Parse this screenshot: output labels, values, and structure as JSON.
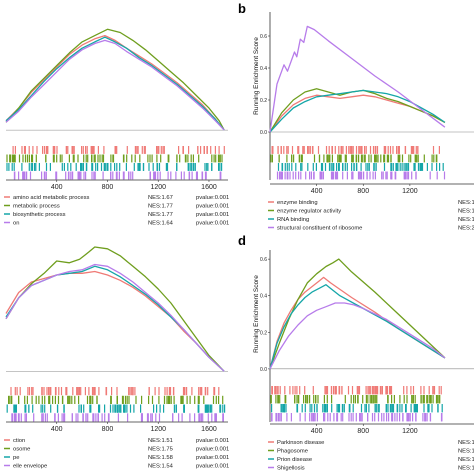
{
  "colors": {
    "red": "#ef7a76",
    "green": "#6f9e1e",
    "teal": "#15a6a8",
    "purple": "#b77cea"
  },
  "chart_data": [
    {
      "panel": "",
      "type": "line",
      "ylabel": "",
      "xlim": [
        0,
        1750
      ],
      "ylim": [
        -0.05,
        0.75
      ],
      "xticks": [
        "400",
        "800",
        "1200",
        "1600"
      ],
      "xtick_values": [
        400,
        800,
        1200,
        1600
      ],
      "yticks": [],
      "series": [
        {
          "name": "amino acid metabolic process",
          "color": "red",
          "x": [
            0,
            100,
            200,
            300,
            400,
            500,
            600,
            700,
            780,
            860,
            950,
            1050,
            1150,
            1250,
            1350,
            1450,
            1550,
            1650,
            1720
          ],
          "y": [
            0.06,
            0.14,
            0.24,
            0.32,
            0.4,
            0.48,
            0.54,
            0.58,
            0.6,
            0.57,
            0.52,
            0.47,
            0.42,
            0.36,
            0.3,
            0.23,
            0.16,
            0.07,
            0.0
          ]
        },
        {
          "name": "metabolic process",
          "color": "green",
          "x": [
            0,
            100,
            200,
            300,
            400,
            500,
            600,
            700,
            800,
            900,
            1000,
            1100,
            1200,
            1300,
            1400,
            1500,
            1600,
            1680,
            1720
          ],
          "y": [
            0.05,
            0.14,
            0.25,
            0.33,
            0.41,
            0.49,
            0.56,
            0.6,
            0.64,
            0.62,
            0.57,
            0.51,
            0.44,
            0.37,
            0.3,
            0.22,
            0.14,
            0.06,
            0.0
          ]
        },
        {
          "name": "biosynthetic process",
          "color": "teal",
          "x": [
            0,
            100,
            200,
            300,
            400,
            500,
            600,
            700,
            780,
            860,
            950,
            1050,
            1150,
            1250,
            1350,
            1450,
            1550,
            1650,
            1720
          ],
          "y": [
            0.06,
            0.13,
            0.22,
            0.31,
            0.39,
            0.46,
            0.52,
            0.56,
            0.59,
            0.56,
            0.52,
            0.46,
            0.41,
            0.35,
            0.29,
            0.22,
            0.15,
            0.07,
            0.0
          ]
        },
        {
          "name": "on",
          "color": "purple",
          "x": [
            0,
            100,
            200,
            300,
            400,
            500,
            600,
            700,
            780,
            860,
            950,
            1050,
            1150,
            1250,
            1350,
            1450,
            1550,
            1650,
            1720
          ],
          "y": [
            0.05,
            0.12,
            0.21,
            0.29,
            0.37,
            0.45,
            0.51,
            0.55,
            0.57,
            0.55,
            0.5,
            0.45,
            0.4,
            0.34,
            0.28,
            0.21,
            0.14,
            0.06,
            0.0
          ]
        }
      ],
      "legend_entries": [
        {
          "label": "amino acid metabolic process",
          "nes": "NES:1.67",
          "pvalue": "pvalue:0.001"
        },
        {
          "label": "metabolic process",
          "nes": "NES:1.77",
          "pvalue": "pvalue:0.001"
        },
        {
          "label": "biosynthetic process",
          "nes": "NES:1.77",
          "pvalue": "pvalue:0.001"
        },
        {
          "label": "on",
          "nes": "NES:1.64",
          "pvalue": "pvalue:0.001"
        }
      ]
    },
    {
      "panel": "b",
      "type": "line",
      "ylabel": "Running Enrichment Score",
      "xlim": [
        0,
        1750
      ],
      "ylim": [
        -0.05,
        0.75
      ],
      "xticks": [
        "400",
        "800",
        "1200"
      ],
      "xtick_values": [
        400,
        800,
        1200
      ],
      "yticks": [
        "0.0",
        "0.2",
        "0.4",
        "0.6"
      ],
      "ytick_values": [
        0.0,
        0.2,
        0.4,
        0.6
      ],
      "series": [
        {
          "name": "enzyme binding",
          "color": "red",
          "x": [
            0,
            100,
            200,
            300,
            400,
            500,
            600,
            700,
            800,
            900,
            1000,
            1100,
            1200,
            1300,
            1400,
            1500
          ],
          "y": [
            0.0,
            0.1,
            0.17,
            0.21,
            0.23,
            0.22,
            0.21,
            0.22,
            0.23,
            0.22,
            0.2,
            0.18,
            0.16,
            0.13,
            0.1,
            0.06
          ]
        },
        {
          "name": "enzyme regulator activity",
          "color": "green",
          "x": [
            0,
            100,
            200,
            300,
            400,
            500,
            600,
            700,
            800,
            900,
            1000,
            1100,
            1200,
            1300,
            1400,
            1500
          ],
          "y": [
            0.0,
            0.12,
            0.2,
            0.25,
            0.27,
            0.25,
            0.23,
            0.25,
            0.26,
            0.24,
            0.21,
            0.19,
            0.16,
            0.13,
            0.1,
            0.06
          ]
        },
        {
          "name": "RNA binding",
          "color": "teal",
          "x": [
            0,
            100,
            200,
            300,
            400,
            500,
            600,
            700,
            800,
            900,
            1000,
            1100,
            1200,
            1300,
            1400,
            1500
          ],
          "y": [
            0.0,
            0.08,
            0.15,
            0.19,
            0.22,
            0.23,
            0.24,
            0.25,
            0.26,
            0.25,
            0.24,
            0.22,
            0.19,
            0.15,
            0.11,
            0.06
          ]
        },
        {
          "name": "structural constituent of ribosome",
          "color": "purple",
          "x": [
            0,
            60,
            120,
            150,
            210,
            230,
            260,
            290,
            320,
            380,
            500,
            700,
            900,
            1100,
            1300,
            1500
          ],
          "y": [
            0.0,
            0.3,
            0.42,
            0.38,
            0.5,
            0.47,
            0.58,
            0.56,
            0.66,
            0.64,
            0.57,
            0.46,
            0.35,
            0.25,
            0.14,
            0.03
          ]
        }
      ],
      "legend_entries": [
        {
          "label": "enzyme binding",
          "nes": "NES:1"
        },
        {
          "label": "enzyme regulator activity",
          "nes": "NES:1"
        },
        {
          "label": "RNA binding",
          "nes": "NES:1"
        },
        {
          "label": "structural constituent of ribosome",
          "nes": "NES:2"
        }
      ]
    },
    {
      "panel": "",
      "type": "line",
      "ylabel": "",
      "xlim": [
        0,
        1750
      ],
      "ylim": [
        -0.05,
        0.75
      ],
      "xticks": [
        "400",
        "800",
        "1200",
        "1600"
      ],
      "xtick_values": [
        400,
        800,
        1200,
        1600
      ],
      "yticks": [],
      "series": [
        {
          "name": "ction",
          "color": "red",
          "x": [
            0,
            100,
            200,
            300,
            400,
            500,
            600,
            700,
            800,
            900,
            1000,
            1100,
            1200,
            1300,
            1400,
            1500,
            1600,
            1720
          ],
          "y": [
            0.33,
            0.45,
            0.51,
            0.53,
            0.55,
            0.56,
            0.56,
            0.57,
            0.55,
            0.52,
            0.48,
            0.43,
            0.37,
            0.31,
            0.23,
            0.16,
            0.08,
            0.0
          ]
        },
        {
          "name": "osome",
          "color": "green",
          "x": [
            0,
            100,
            200,
            300,
            400,
            500,
            580,
            650,
            700,
            800,
            900,
            1000,
            1100,
            1200,
            1300,
            1400,
            1500,
            1600,
            1720
          ],
          "y": [
            0.3,
            0.42,
            0.5,
            0.56,
            0.63,
            0.62,
            0.64,
            0.68,
            0.71,
            0.7,
            0.66,
            0.6,
            0.54,
            0.47,
            0.39,
            0.29,
            0.19,
            0.09,
            0.0
          ]
        },
        {
          "name": "pe",
          "color": "teal",
          "x": [
            0,
            100,
            200,
            300,
            400,
            500,
            600,
            700,
            800,
            900,
            1000,
            1100,
            1200,
            1300,
            1400,
            1500,
            1600,
            1720
          ],
          "y": [
            0.31,
            0.42,
            0.49,
            0.52,
            0.55,
            0.56,
            0.57,
            0.6,
            0.58,
            0.54,
            0.49,
            0.44,
            0.38,
            0.31,
            0.24,
            0.16,
            0.08,
            0.0
          ]
        },
        {
          "name": "elle envelope",
          "color": "purple",
          "x": [
            0,
            100,
            200,
            300,
            400,
            500,
            600,
            700,
            800,
            900,
            1000,
            1100,
            1200,
            1300,
            1400,
            1500,
            1600,
            1720
          ],
          "y": [
            0.3,
            0.42,
            0.49,
            0.52,
            0.55,
            0.57,
            0.58,
            0.61,
            0.6,
            0.56,
            0.51,
            0.45,
            0.39,
            0.32,
            0.24,
            0.16,
            0.08,
            0.0
          ]
        }
      ],
      "legend_entries": [
        {
          "label": "ction",
          "nes": "NES:1.51",
          "pvalue": "pvalue:0.001"
        },
        {
          "label": "osome",
          "nes": "NES:1.75",
          "pvalue": "pvalue:0.001"
        },
        {
          "label": "pe",
          "nes": "NES:1.58",
          "pvalue": "pvalue:0.001"
        },
        {
          "label": "elle envelope",
          "nes": "NES:1.54",
          "pvalue": "pvalue:0.001"
        }
      ]
    },
    {
      "panel": "d",
      "type": "line",
      "ylabel": "Running Enrichment Score",
      "xlim": [
        0,
        1750
      ],
      "ylim": [
        -0.05,
        0.65
      ],
      "xticks": [
        "400",
        "800",
        "1200"
      ],
      "xtick_values": [
        400,
        800,
        1200
      ],
      "yticks": [
        "0.0",
        "0.2",
        "0.4",
        "0.6"
      ],
      "ytick_values": [
        0.0,
        0.2,
        0.4,
        0.6
      ],
      "series": [
        {
          "name": "Parkinson disease",
          "color": "red",
          "x": [
            0,
            60,
            120,
            180,
            240,
            300,
            360,
            420,
            460,
            520,
            700,
            900,
            1100,
            1300,
            1500
          ],
          "y": [
            0.0,
            0.15,
            0.25,
            0.32,
            0.38,
            0.42,
            0.45,
            0.48,
            0.5,
            0.47,
            0.39,
            0.31,
            0.22,
            0.14,
            0.06
          ]
        },
        {
          "name": "Phagosome",
          "color": "green",
          "x": [
            0,
            80,
            160,
            240,
            320,
            400,
            480,
            540,
            590,
            700,
            900,
            1100,
            1300,
            1500
          ],
          "y": [
            0.0,
            0.14,
            0.27,
            0.38,
            0.47,
            0.52,
            0.56,
            0.58,
            0.6,
            0.53,
            0.42,
            0.3,
            0.18,
            0.06
          ]
        },
        {
          "name": "Prion disease",
          "color": "teal",
          "x": [
            0,
            60,
            120,
            180,
            240,
            300,
            360,
            420,
            480,
            540,
            600,
            800,
            1000,
            1200,
            1400,
            1500
          ],
          "y": [
            0.0,
            0.14,
            0.23,
            0.3,
            0.35,
            0.39,
            0.42,
            0.44,
            0.46,
            0.43,
            0.4,
            0.33,
            0.26,
            0.18,
            0.1,
            0.06
          ]
        },
        {
          "name": "Shigellosis",
          "color": "purple",
          "x": [
            0,
            80,
            160,
            240,
            320,
            400,
            480,
            560,
            640,
            720,
            800,
            1000,
            1200,
            1400,
            1500
          ],
          "y": [
            0.0,
            0.1,
            0.18,
            0.24,
            0.29,
            0.32,
            0.34,
            0.36,
            0.36,
            0.35,
            0.33,
            0.27,
            0.19,
            0.11,
            0.06
          ]
        }
      ],
      "legend_entries": [
        {
          "label": "Parkinson disease",
          "nes": "NES:1"
        },
        {
          "label": "Phagosome",
          "nes": "NES:1"
        },
        {
          "label": "Prion disease",
          "nes": "NES:1"
        },
        {
          "label": "Shigellosis",
          "nes": "NES:1"
        }
      ]
    }
  ]
}
